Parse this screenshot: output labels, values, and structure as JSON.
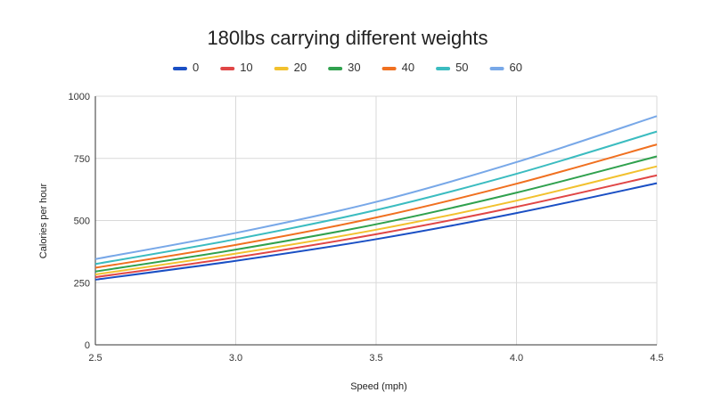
{
  "chart_data": {
    "type": "line",
    "title": "180lbs carrying different weights",
    "xlabel": "Speed (mph)",
    "ylabel": "Calories per hour",
    "xlim": [
      2.5,
      4.5
    ],
    "ylim": [
      0,
      1000
    ],
    "x_ticks": [
      "2.5",
      "3.0",
      "3.5",
      "4.0",
      "4.5"
    ],
    "y_ticks": [
      "0",
      "250",
      "500",
      "750",
      "1000"
    ],
    "grid": true,
    "legend_position": "top",
    "x": [
      2.5,
      3.0,
      3.5,
      4.0,
      4.5
    ],
    "series": [
      {
        "name": "0",
        "color": "#1a4fc4",
        "values": [
          262,
          338,
          425,
          530,
          650
        ]
      },
      {
        "name": "10",
        "color": "#e04646",
        "values": [
          272,
          352,
          445,
          555,
          682
        ]
      },
      {
        "name": "20",
        "color": "#f2c12e",
        "values": [
          283,
          367,
          463,
          580,
          718
        ]
      },
      {
        "name": "30",
        "color": "#30a14e",
        "values": [
          295,
          383,
          485,
          612,
          758
        ]
      },
      {
        "name": "40",
        "color": "#f07020",
        "values": [
          310,
          402,
          512,
          648,
          806
        ]
      },
      {
        "name": "50",
        "color": "#3bbcc0",
        "values": [
          325,
          425,
          542,
          688,
          858
        ]
      },
      {
        "name": "60",
        "color": "#78a8e8",
        "values": [
          345,
          450,
          575,
          735,
          920
        ]
      }
    ]
  }
}
